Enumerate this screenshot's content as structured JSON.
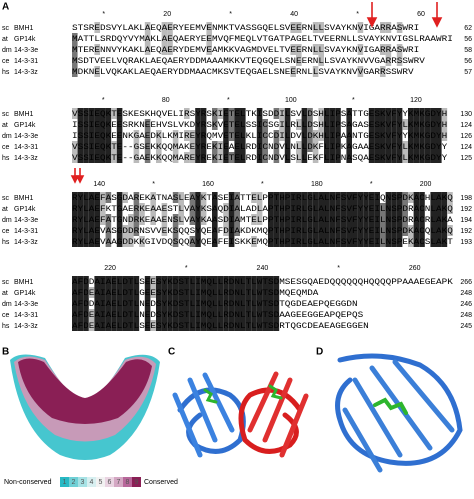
{
  "panels": {
    "a": "A",
    "b": "B",
    "c": "C",
    "d": "D"
  },
  "alignment": {
    "blocks": [
      {
        "ruler": [
          "*",
          "20",
          "*",
          "40",
          "*",
          "60"
        ],
        "rows": [
          {
            "species": "sc",
            "protein": "BMH1",
            "sequence": "STSREDSVYLAKLAEQAERYEEMVENMKTVASSGQELSVEERNLLSVAYKNVIGARRASWRI",
            "end": "62"
          },
          {
            "species": "at",
            "protein": "GP14k",
            "sequence": "MATTLSRDQYVYMAKLAEQAERYEEMVQFMEQLVTGATPAGELTVEERNLLSVAYKNVIGSLRAAWRI",
            "end": "56"
          },
          {
            "species": "dm",
            "protein": "14-3-3e",
            "sequence": "MTERENNVYKAKLAEQAERYDEMVEAMKKVAGMDVELTVEERNLLSVAYKNVIGARRASWRI",
            "end": "58"
          },
          {
            "species": "ce",
            "protein": "14-3-31",
            "sequence": "MSDTVEELVQRAKLAEQAERYDDMAAAMKKVTEQGQELSNEERNLLSVAYKNVVGARRSSWRV",
            "end": "56"
          },
          {
            "species": "hs",
            "protein": "14-3-3z",
            "sequence": "MDKNELVQKAKLAEQAERYDDMAACMKSVTEQGAELSNEERNLLSVAYKNVVGARRSSWRV",
            "end": "57"
          }
        ]
      },
      {
        "ruler": [
          "*",
          "80",
          "*",
          "100",
          "*",
          "120"
        ],
        "rows": [
          {
            "species": "sc",
            "protein": "BMH1",
            "sequence": "VSSIEQKTESKESKHQVELIRSYRSKIETELTKISDDILSVLDSHLIPSATTGESKVFYYKMKGDYH",
            "end": "130"
          },
          {
            "species": "at",
            "protein": "GP14k",
            "sequence": "ISSIEQKEESRKNEEHVSLVKDYRSKVETELSSICSGILRLLDSHLIPSAGASESKVFYLKMKGDYH",
            "end": "124"
          },
          {
            "species": "dm",
            "protein": "14-3-3e",
            "sequence": "ISSIEQKEENKGAEDKLKMIREYRQMVETELKLICCDILDVLDKHLIPAANTGESKVFYYKMKGDYH",
            "end": "126"
          },
          {
            "species": "ce",
            "protein": "14-3-31",
            "sequence": "VSSIEQKTE--GSEKKQQMAKEYREKIEAELRDICNDVLNLLDKFLIPKAGAAESKVFYLKMKGDYY",
            "end": "124"
          },
          {
            "species": "hs",
            "protein": "14-3-3z",
            "sequence": "VSSIEQKTE--GAEKKQQMAREYREKIETELRDICNDVLSLLEKFLIPNASQAESKVFYLKMKGDYY",
            "end": "125"
          }
        ]
      },
      {
        "ruler": [
          "140",
          "*",
          "160",
          "*",
          "180",
          "*",
          "200"
        ],
        "rows": [
          {
            "species": "sc",
            "protein": "BMH1",
            "sequence": "RYLAEFASGDAREKATNASLEAYKTASEIATTELPPTHPIRLGLALNFSVFYYEIQNSPDKACHLAKQ",
            "end": "198"
          },
          {
            "species": "at",
            "protein": "GP14k",
            "sequence": "RYLAEFKTGAERKEAAESTLVAYKSAQDIALADLAPTHPIRLGLALNFSVFYYEILNSPDRACNLAKQ",
            "end": "192"
          },
          {
            "species": "dm",
            "protein": "14-3-3e",
            "sequence": "RYLAEFATGNDRKEAAENSLVAYKAASDIAMTELPPTHPIRLGLALNFSVFYYEILNSPDRACRLAKA",
            "end": "194"
          },
          {
            "species": "ce",
            "protein": "14-3-31",
            "sequence": "RYLAEVASGDDRNSVVEKSQQSYQEAFDIAKDKMQPTHPIRLGLALNFSVFYYEILNSPDKACQLAKQ",
            "end": "192"
          },
          {
            "species": "hs",
            "protein": "14-3-3z",
            "sequence": "RYLAEVAAGDDKKGIVDQSQQAYQEAFEISKKEMQPTHPIRLGLALNFSVFYYEILNSPEKACSLAKT",
            "end": "193"
          }
        ]
      },
      {
        "ruler": [
          "220",
          "*",
          "240",
          "*",
          "260"
        ],
        "rows": [
          {
            "species": "sc",
            "protein": "BMH1",
            "sequence": "AFDDAIAELDTLSEESYKDSTLIMQLLRDNLTLWTSDMSESGQAEDQQQQQQHQQQQPPAAAEGEAPK",
            "end": "266"
          },
          {
            "species": "at",
            "protein": "GP14k",
            "sequence": "AFDEAIAELDTLGEESYKDSTLIMQLLRDNLTLWTSDMQEQMDA",
            "end": "248"
          },
          {
            "species": "dm",
            "protein": "14-3-3e",
            "sequence": "AFDDAIAELDTLNEDSYKDSTLIMQLLRDNLTLWTSDTQGDEAEPQEGGDN",
            "end": "246"
          },
          {
            "species": "ce",
            "protein": "14-3-31",
            "sequence": "AFDEAIAELDTLNEDSYKDSTLIMQLLRDNLTLWTSDAAGEEGGEAPQEPQS",
            "end": "248"
          },
          {
            "species": "hs",
            "protein": "14-3-3z",
            "sequence": "AFDEAIAELDTLSEESYKDSTLIMQLLRDNLTLWTSDRTQGCDEAEAGEGGEN",
            "end": "245"
          }
        ]
      }
    ]
  },
  "legend": {
    "low": "Non-conserved",
    "high": "Conserved",
    "scale": [
      "1",
      "2",
      "3",
      "4",
      "5",
      "6",
      "7",
      "8",
      "9"
    ]
  }
}
